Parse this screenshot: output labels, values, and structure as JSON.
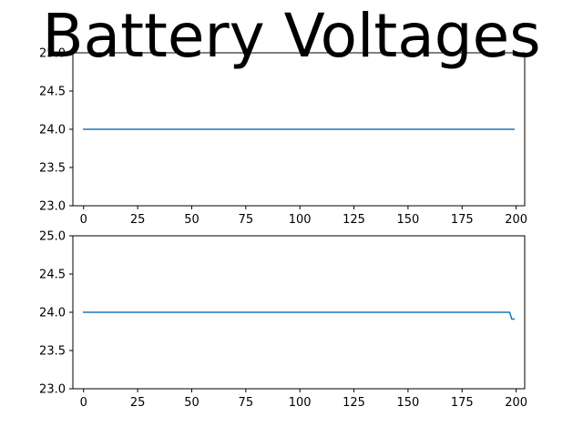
{
  "title": "Battery Voltages",
  "chart_data": [
    {
      "type": "line",
      "x": [
        0,
        199
      ],
      "series": [
        {
          "x": [
            0,
            199
          ],
          "values": [
            24.0,
            24.0
          ],
          "color": "#1f77b4"
        }
      ],
      "xlim": [
        -4.95,
        203.95
      ],
      "ylim": [
        23.0,
        25.0
      ],
      "xticks": [
        0,
        25,
        50,
        75,
        100,
        125,
        150,
        175,
        200
      ],
      "yticks": [
        23.0,
        23.5,
        24.0,
        24.5,
        25.0
      ],
      "xtick_labels": [
        "0",
        "25",
        "50",
        "75",
        "100",
        "125",
        "150",
        "175",
        "200"
      ],
      "ytick_labels": [
        "23.0",
        "23.5",
        "24.0",
        "24.5",
        "25.0"
      ],
      "xlabel": "",
      "ylabel": "",
      "grid": false,
      "legend": "none"
    },
    {
      "type": "line",
      "x": [
        0,
        197,
        198,
        199
      ],
      "series": [
        {
          "x": [
            0,
            197,
            198,
            199
          ],
          "values": [
            24.0,
            24.0,
            23.91,
            23.91
          ],
          "color": "#1f77b4"
        }
      ],
      "xlim": [
        -4.95,
        203.95
      ],
      "ylim": [
        23.0,
        25.0
      ],
      "xticks": [
        0,
        25,
        50,
        75,
        100,
        125,
        150,
        175,
        200
      ],
      "yticks": [
        23.0,
        23.5,
        24.0,
        24.5,
        25.0
      ],
      "xtick_labels": [
        "0",
        "25",
        "50",
        "75",
        "100",
        "125",
        "150",
        "175",
        "200"
      ],
      "ytick_labels": [
        "23.0",
        "23.5",
        "24.0",
        "24.5",
        "25.0"
      ],
      "xlabel": "",
      "ylabel": "",
      "grid": false,
      "legend": "none"
    }
  ]
}
